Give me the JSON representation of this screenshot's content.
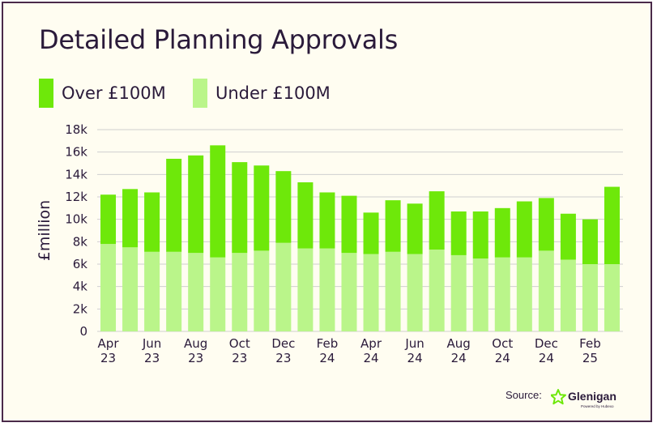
{
  "title": "Detailed Planning Approvals",
  "legend": {
    "over": "Over £100M",
    "under": "Under £100M"
  },
  "colors": {
    "over": "#6ee80a",
    "under": "#baf58a",
    "grid": "#cfcfcf",
    "text": "#2a1a3a",
    "background": "#fffdf1"
  },
  "source_label": "Source:",
  "logo": {
    "name": "Glenigan",
    "tagline": "Powered by Hubexo"
  },
  "chart_data": {
    "type": "bar",
    "stacked": true,
    "ylabel": "£million",
    "ylim": [
      0,
      18000
    ],
    "yticks": [
      "0",
      "2k",
      "4k",
      "6k",
      "8k",
      "10k",
      "12k",
      "14k",
      "16k",
      "18k"
    ],
    "grid": true,
    "legend_position": "top-left",
    "categories": [
      "Apr 23",
      "May 23",
      "Jun 23",
      "Jul 23",
      "Aug 23",
      "Sep 23",
      "Oct 23",
      "Nov 23",
      "Dec 23",
      "Jan 24",
      "Feb 24",
      "Mar 24",
      "Apr 24",
      "May 24",
      "Jun 24",
      "Jul 24",
      "Aug 24",
      "Sep 24",
      "Oct 24",
      "Nov 24",
      "Dec 24",
      "Jan 25",
      "Feb 25",
      "Mar 25"
    ],
    "x_tick_labels": [
      {
        "index": 0,
        "line1": "Apr",
        "line2": "23"
      },
      {
        "index": 2,
        "line1": "Jun",
        "line2": "23"
      },
      {
        "index": 4,
        "line1": "Aug",
        "line2": "23"
      },
      {
        "index": 6,
        "line1": "Oct",
        "line2": "23"
      },
      {
        "index": 8,
        "line1": "Dec",
        "line2": "23"
      },
      {
        "index": 10,
        "line1": "Feb",
        "line2": "24"
      },
      {
        "index": 12,
        "line1": "Apr",
        "line2": "24"
      },
      {
        "index": 14,
        "line1": "Jun",
        "line2": "24"
      },
      {
        "index": 16,
        "line1": "Aug",
        "line2": "24"
      },
      {
        "index": 18,
        "line1": "Oct",
        "line2": "24"
      },
      {
        "index": 20,
        "line1": "Dec",
        "line2": "24"
      },
      {
        "index": 22,
        "line1": "Feb",
        "line2": "25"
      }
    ],
    "series": [
      {
        "name": "Under £100M",
        "values": [
          7800,
          7500,
          7100,
          7100,
          7000,
          6600,
          7000,
          7200,
          7900,
          7400,
          7400,
          7000,
          6900,
          7100,
          6900,
          7300,
          6800,
          6500,
          6600,
          6600,
          7200,
          6400,
          6000,
          6000
        ]
      },
      {
        "name": "Over £100M",
        "values": [
          4400,
          5200,
          5300,
          8300,
          8700,
          10000,
          8100,
          7600,
          6400,
          5900,
          5000,
          5100,
          3700,
          4600,
          4500,
          5200,
          3900,
          4200,
          4400,
          5000,
          4700,
          4100,
          4000,
          6900
        ]
      }
    ]
  }
}
